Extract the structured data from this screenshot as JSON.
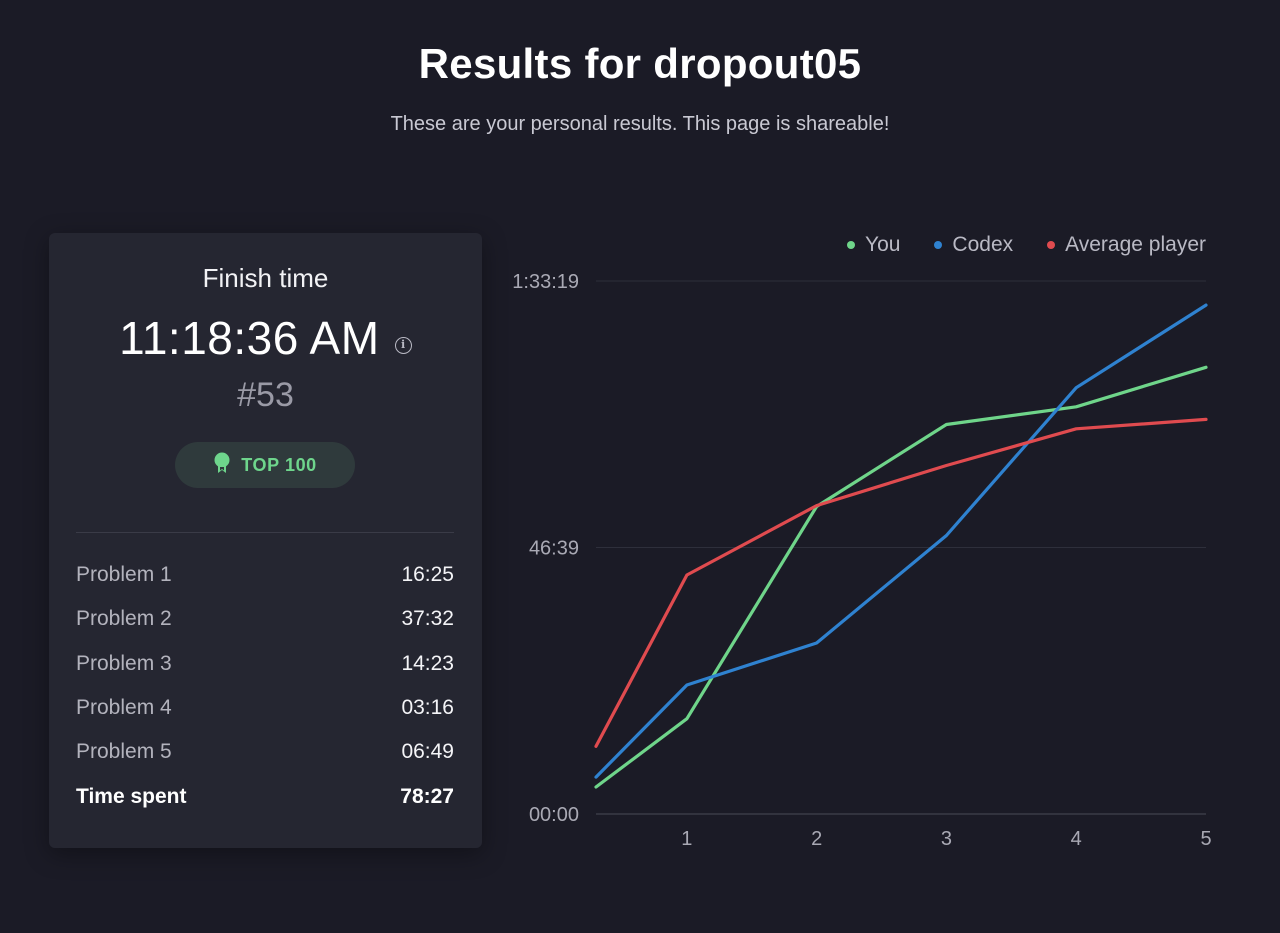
{
  "header": {
    "title": "Results for dropout05",
    "subtitle": "These are your personal results. This page is shareable!"
  },
  "card": {
    "finish_label": "Finish time",
    "finish_time": "11:18:36 AM",
    "info_icon": "info-icon",
    "rank": "#53",
    "badge": {
      "icon": "award-ribbon-icon",
      "label": "TOP 100",
      "color": "#6ed58c"
    },
    "problems": [
      {
        "name": "Problem 1",
        "time": "16:25"
      },
      {
        "name": "Problem 2",
        "time": "37:32"
      },
      {
        "name": "Problem 3",
        "time": "14:23"
      },
      {
        "name": "Problem 4",
        "time": "03:16"
      },
      {
        "name": "Problem 5",
        "time": "06:49"
      }
    ],
    "total": {
      "name": "Time spent",
      "time": "78:27"
    }
  },
  "chart_data": {
    "type": "line",
    "x_ticks": [
      "1",
      "2",
      "3",
      "4",
      "5"
    ],
    "y_ticks": [
      "00:00",
      "46:39",
      "1:33:19"
    ],
    "ylim_seconds": [
      0,
      5599
    ],
    "xlim": [
      0.3,
      5
    ],
    "legend_position": "top-right",
    "grid": true,
    "series": [
      {
        "name": "You",
        "color": "#6fd58a",
        "points": [
          [
            0.3,
            284
          ],
          [
            1,
            1001
          ],
          [
            2,
            3230
          ],
          [
            3,
            4092
          ],
          [
            4,
            4278
          ],
          [
            5,
            4692
          ]
        ]
      },
      {
        "name": "Codex",
        "color": "#2f82d0",
        "points": [
          [
            0.3,
            388
          ],
          [
            1,
            1355
          ],
          [
            2,
            1796
          ],
          [
            3,
            2926
          ],
          [
            4,
            4478
          ],
          [
            5,
            5346
          ]
        ]
      },
      {
        "name": "Average player",
        "color": "#e04b4f",
        "points": [
          [
            0.3,
            711
          ],
          [
            1,
            2511
          ],
          [
            2,
            3240
          ],
          [
            3,
            3661
          ],
          [
            4,
            4046
          ],
          [
            5,
            4145
          ]
        ]
      }
    ]
  }
}
